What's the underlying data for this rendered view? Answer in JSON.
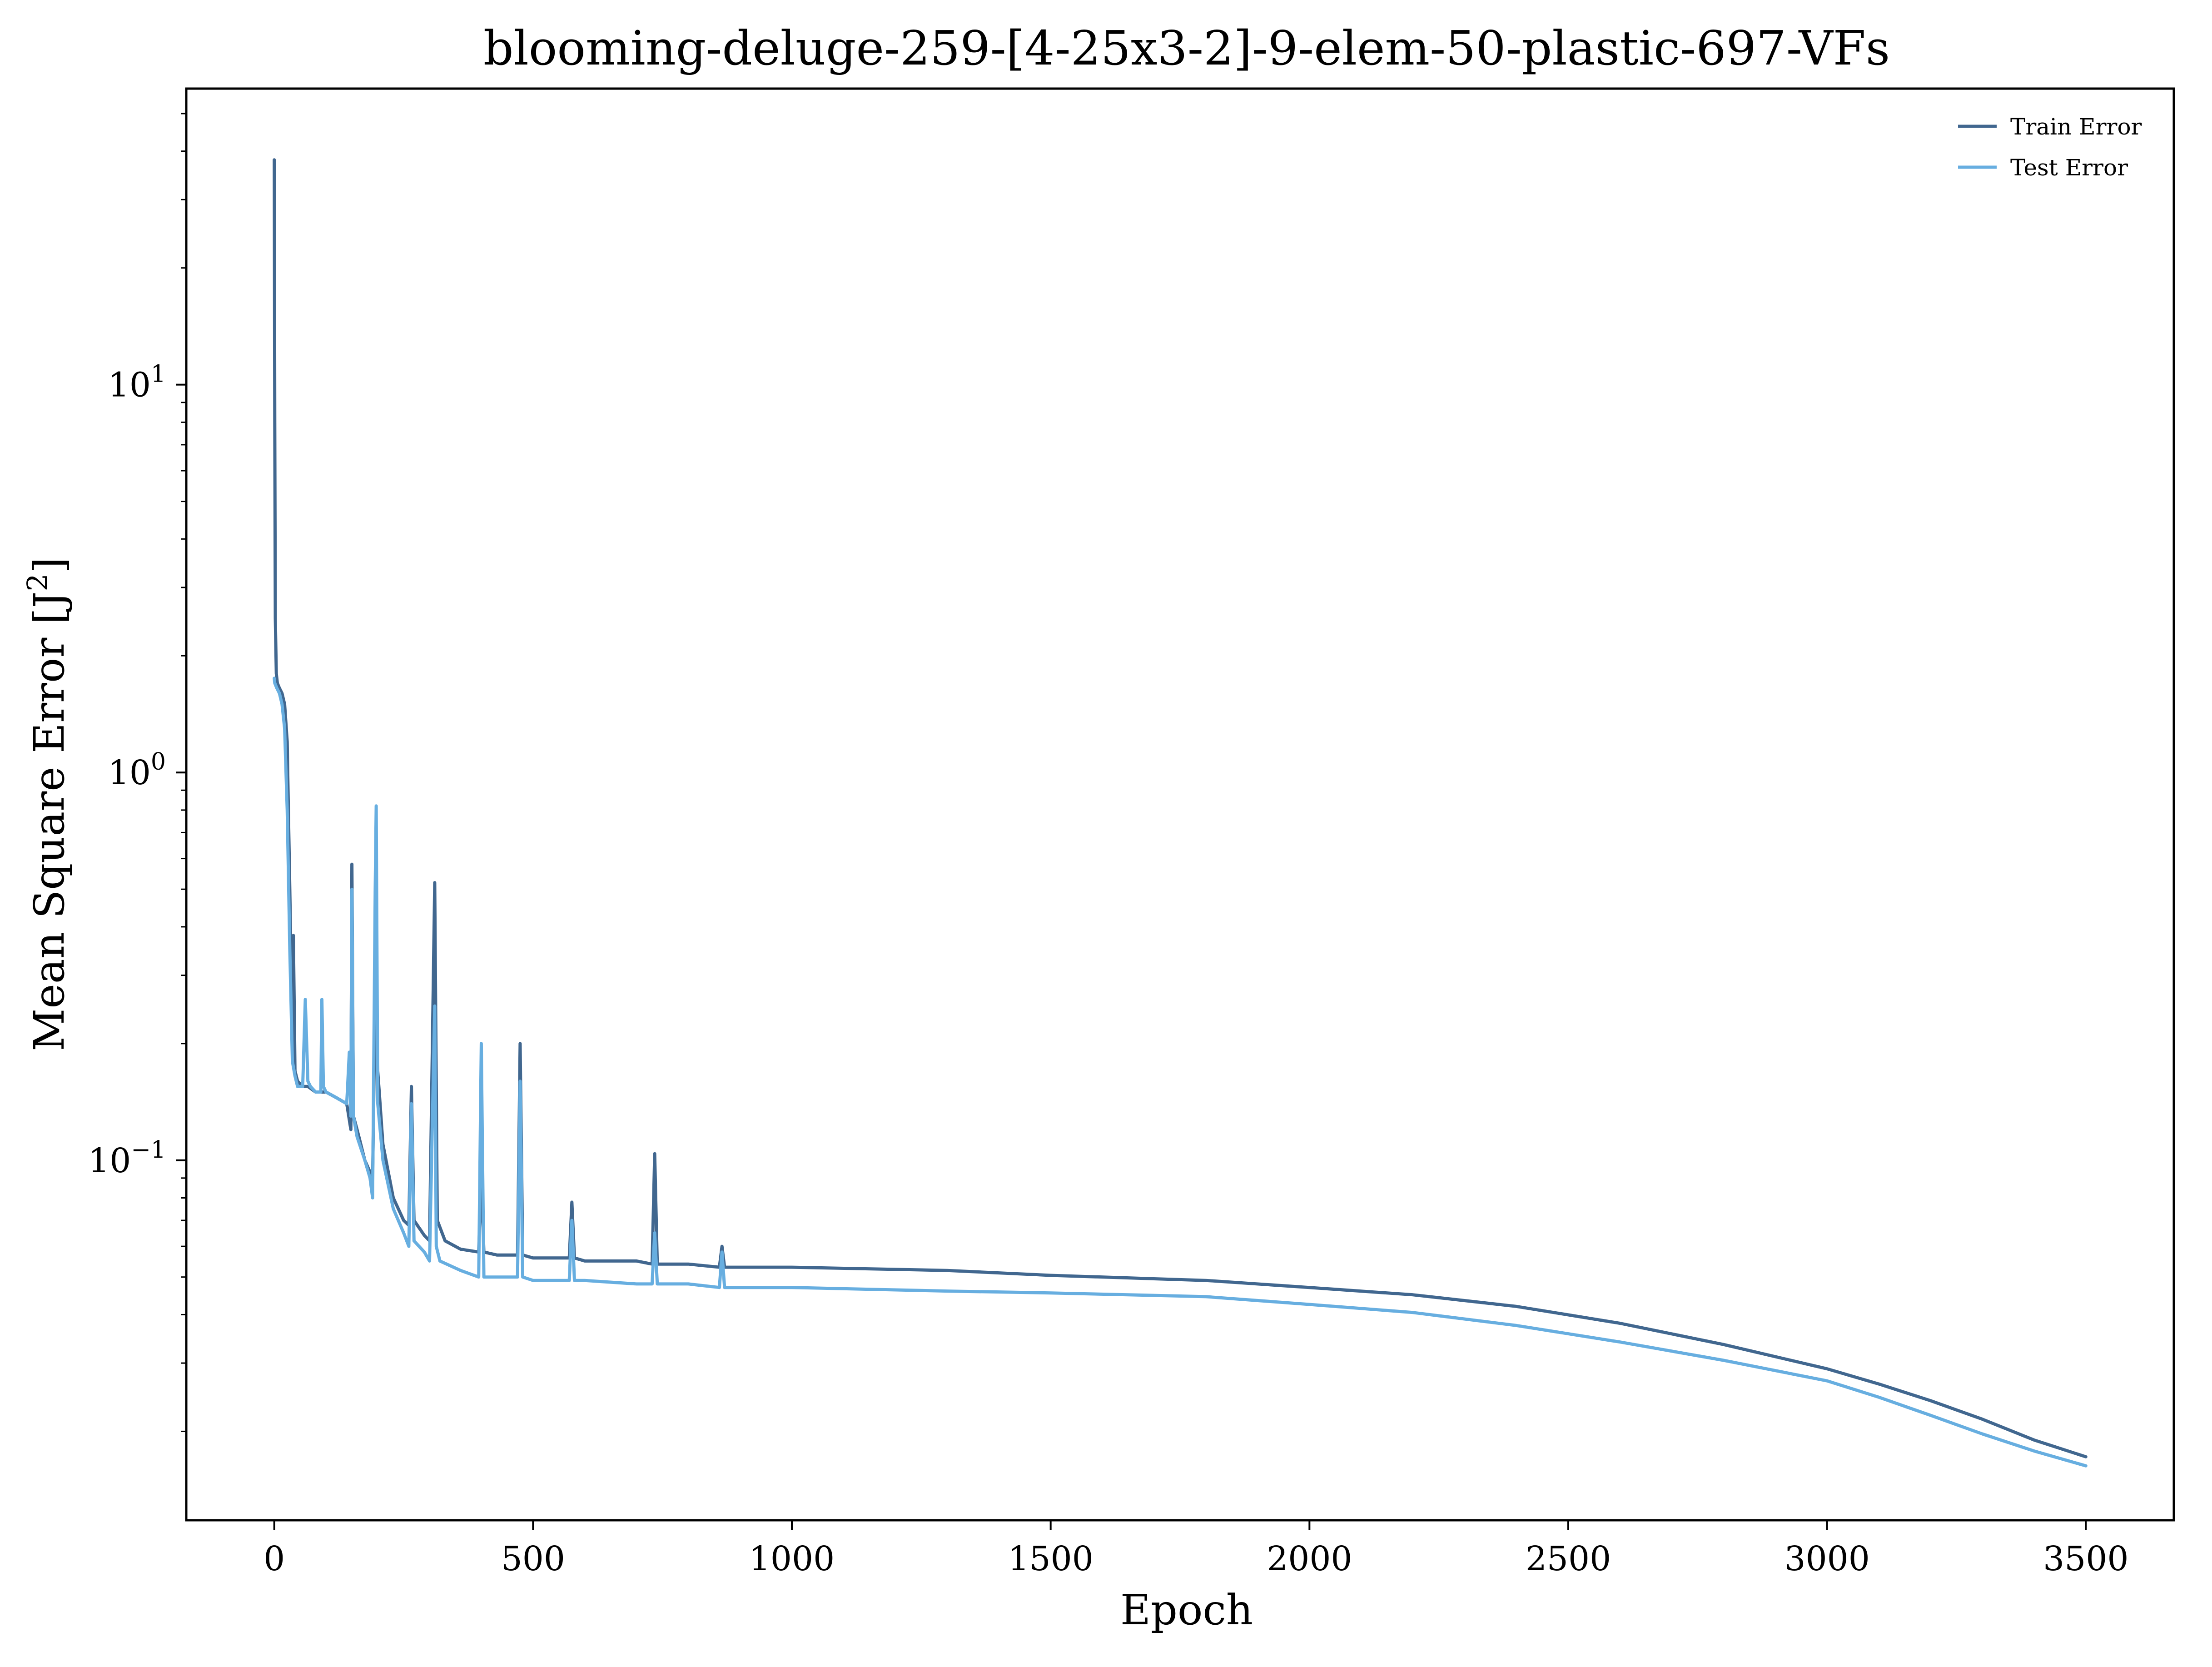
{
  "chart_data": {
    "type": "line",
    "title": "blooming-deluge-259-[4-25x3-2]-9-elem-50-plastic-697-VFs",
    "xlabel": "Epoch",
    "ylabel": "Mean Square Error [J²]",
    "ylabel_base": "Mean Square Error [J",
    "ylabel_sup": "2",
    "ylabel_end": "]",
    "yscale": "log",
    "xlim": [
      -170,
      3670
    ],
    "ylim": [
      0.0118,
      58
    ],
    "grid": false,
    "legend_position": "top-right",
    "x_ticks": [
      {
        "value": 0,
        "label": "0"
      },
      {
        "value": 500,
        "label": "500"
      },
      {
        "value": 1000,
        "label": "1000"
      },
      {
        "value": 1500,
        "label": "1500"
      },
      {
        "value": 2000,
        "label": "2000"
      },
      {
        "value": 2500,
        "label": "2500"
      },
      {
        "value": 3000,
        "label": "3000"
      },
      {
        "value": 3500,
        "label": "3500"
      }
    ],
    "y_ticks": [
      {
        "value": 10,
        "base": "10",
        "exp": "1"
      },
      {
        "value": 1,
        "base": "10",
        "exp": "0"
      },
      {
        "value": 0.1,
        "base": "10",
        "exp": "−1"
      }
    ],
    "series": [
      {
        "name": "Train Error",
        "color": "#41678f",
        "x": [
          0,
          1,
          2,
          4,
          6,
          10,
          15,
          20,
          25,
          30,
          35,
          37,
          40,
          45,
          55,
          65,
          80,
          100,
          120,
          140,
          148,
          150,
          153,
          160,
          175,
          190,
          195,
          200,
          210,
          230,
          250,
          260,
          265,
          270,
          290,
          300,
          310,
          315,
          330,
          360,
          395,
          400,
          405,
          430,
          470,
          475,
          480,
          500,
          570,
          575,
          580,
          600,
          700,
          730,
          735,
          740,
          800,
          860,
          865,
          870,
          1000,
          1300,
          1500,
          1800,
          2000,
          2200,
          2400,
          2600,
          2800,
          3000,
          3100,
          3200,
          3300,
          3400,
          3500
        ],
        "y": [
          38,
          8,
          2.5,
          1.8,
          1.7,
          1.65,
          1.6,
          1.5,
          1.2,
          0.5,
          0.2,
          0.38,
          0.17,
          0.16,
          0.155,
          0.155,
          0.15,
          0.15,
          0.145,
          0.14,
          0.12,
          0.58,
          0.13,
          0.12,
          0.1,
          0.09,
          0.27,
          0.17,
          0.11,
          0.08,
          0.07,
          0.068,
          0.155,
          0.07,
          0.064,
          0.062,
          0.52,
          0.07,
          0.062,
          0.059,
          0.058,
          0.092,
          0.058,
          0.057,
          0.057,
          0.2,
          0.057,
          0.056,
          0.056,
          0.078,
          0.056,
          0.055,
          0.055,
          0.054,
          0.104,
          0.054,
          0.054,
          0.053,
          0.06,
          0.053,
          0.053,
          0.052,
          0.0505,
          0.049,
          0.047,
          0.045,
          0.042,
          0.038,
          0.0335,
          0.029,
          0.0265,
          0.024,
          0.0215,
          0.019,
          0.0172
        ]
      },
      {
        "name": "Test Error",
        "color": "#67aee0",
        "x": [
          0,
          1,
          5,
          10,
          15,
          20,
          25,
          30,
          35,
          40,
          45,
          55,
          60,
          65,
          70,
          80,
          90,
          92,
          95,
          100,
          120,
          140,
          145,
          148,
          150,
          153,
          160,
          175,
          185,
          190,
          195,
          197,
          200,
          210,
          230,
          250,
          260,
          265,
          270,
          290,
          300,
          310,
          313,
          320,
          360,
          395,
          400,
          405,
          430,
          470,
          475,
          480,
          500,
          570,
          575,
          580,
          600,
          700,
          730,
          735,
          740,
          800,
          860,
          865,
          870,
          1000,
          1300,
          1500,
          1800,
          2000,
          2200,
          2400,
          2600,
          2800,
          3000,
          3100,
          3200,
          3300,
          3400,
          3500
        ],
        "y": [
          1.75,
          1.7,
          1.65,
          1.6,
          1.5,
          1.3,
          0.8,
          0.35,
          0.18,
          0.165,
          0.155,
          0.155,
          0.26,
          0.16,
          0.155,
          0.15,
          0.15,
          0.26,
          0.155,
          0.15,
          0.145,
          0.14,
          0.19,
          0.13,
          0.5,
          0.13,
          0.115,
          0.1,
          0.09,
          0.08,
          0.5,
          0.82,
          0.14,
          0.1,
          0.075,
          0.065,
          0.06,
          0.14,
          0.062,
          0.058,
          0.055,
          0.25,
          0.06,
          0.055,
          0.052,
          0.05,
          0.2,
          0.05,
          0.05,
          0.05,
          0.16,
          0.05,
          0.049,
          0.049,
          0.07,
          0.049,
          0.049,
          0.048,
          0.048,
          0.065,
          0.048,
          0.048,
          0.047,
          0.058,
          0.047,
          0.047,
          0.046,
          0.0455,
          0.0445,
          0.0425,
          0.0405,
          0.0375,
          0.034,
          0.0305,
          0.027,
          0.0245,
          0.022,
          0.0197,
          0.0178,
          0.0163
        ]
      }
    ]
  }
}
